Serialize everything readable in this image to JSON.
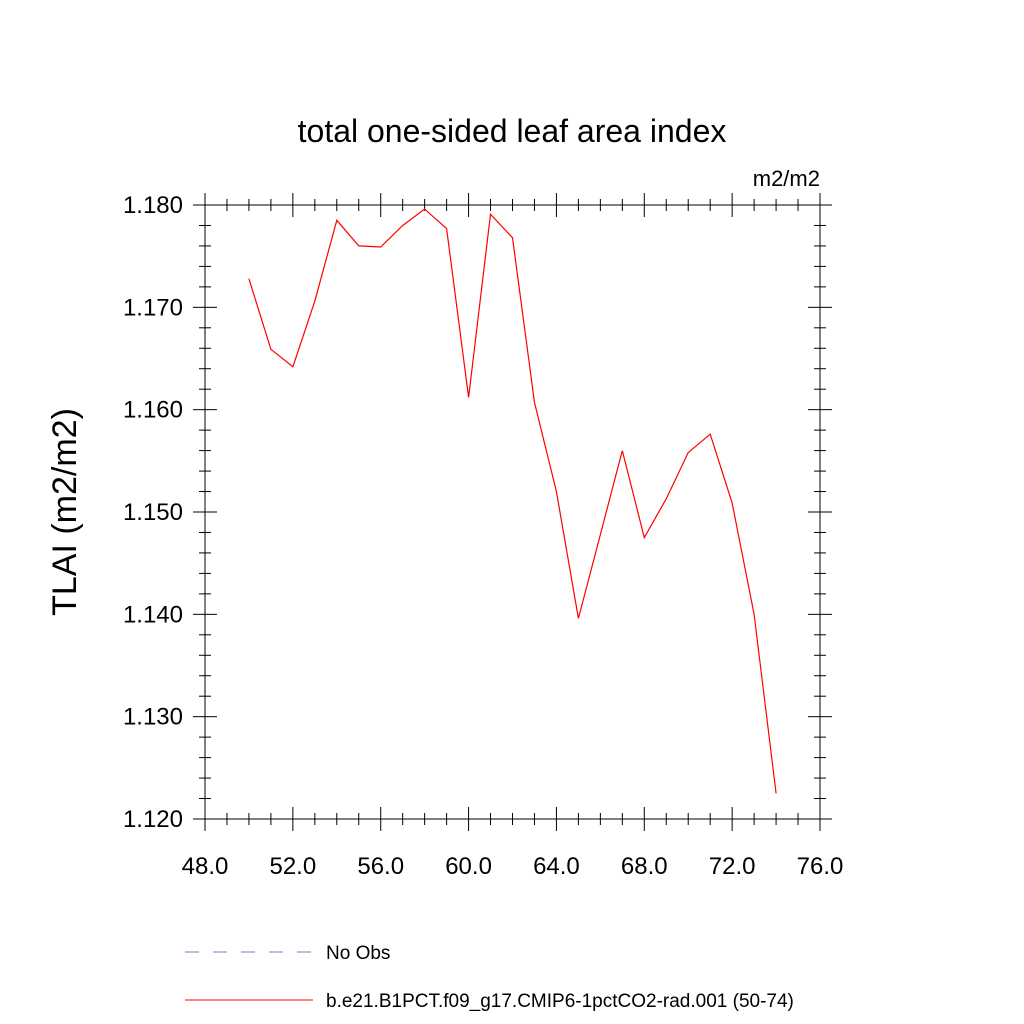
{
  "chart_data": {
    "type": "line",
    "title": "total one-sided leaf area index",
    "units": "m2/m2",
    "xlabel": "",
    "ylabel": "TLAI  (m2/m2)",
    "xlim": [
      48,
      76
    ],
    "ylim": [
      1.12,
      1.18
    ],
    "x_ticks": [
      "48.0",
      "52.0",
      "56.0",
      "60.0",
      "64.0",
      "68.0",
      "72.0",
      "76.0"
    ],
    "y_ticks": [
      "1.120",
      "1.130",
      "1.140",
      "1.150",
      "1.160",
      "1.170",
      "1.180"
    ],
    "grid": false,
    "series": [
      {
        "name": "b.e21.B1PCT.f09_g17.CMIP6-1pctCO2-rad.001 (50-74)",
        "color": "#ff0000",
        "x": [
          50,
          51,
          52,
          53,
          54,
          55,
          56,
          57,
          58,
          59,
          60,
          61,
          62,
          63,
          64,
          65,
          66,
          67,
          68,
          69,
          70,
          71,
          72,
          73,
          74
        ],
        "values": [
          1.1728,
          1.1659,
          1.1642,
          1.1706,
          1.1785,
          1.176,
          1.1759,
          1.178,
          1.1796,
          1.1777,
          1.1612,
          1.1791,
          1.1768,
          1.1607,
          1.152,
          1.1396,
          1.1478,
          1.156,
          1.1475,
          1.1513,
          1.1558,
          1.1576,
          1.1509,
          1.14,
          1.1225
        ]
      }
    ],
    "legend": [
      {
        "label": "No Obs",
        "style": "dashed",
        "color": "#7b7bc9"
      },
      {
        "label": "b.e21.B1PCT.f09_g17.CMIP6-1pctCO2-rad.001 (50-74)",
        "style": "solid",
        "color": "#ff0000"
      }
    ]
  }
}
